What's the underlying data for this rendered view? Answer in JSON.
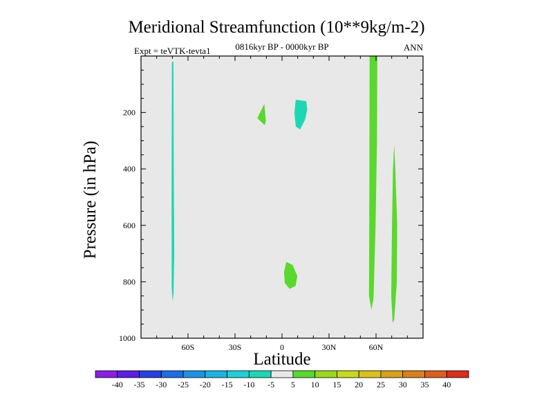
{
  "chart_data": {
    "type": "filled_contour",
    "title": "Meridional Streamfunction (10**9kg/m-2)",
    "subtitle_left": "Expt = teVTK-tevta1",
    "subtitle_center": "0816kyr BP - 0000kyr BP",
    "subtitle_right": "ANN",
    "xlabel": "Latitude",
    "ylabel": "Pressure (in hPa)",
    "xlim": [
      -90,
      90
    ],
    "ylim": [
      1000,
      0
    ],
    "x_ticks": [
      {
        "value": -60,
        "label": "60S"
      },
      {
        "value": -30,
        "label": "30S"
      },
      {
        "value": 0,
        "label": "0"
      },
      {
        "value": 30,
        "label": "30N"
      },
      {
        "value": 60,
        "label": "60N"
      }
    ],
    "y_ticks": [
      {
        "value": 200,
        "label": "200"
      },
      {
        "value": 400,
        "label": "400"
      },
      {
        "value": 600,
        "label": "600"
      },
      {
        "value": 800,
        "label": "800"
      },
      {
        "value": 1000,
        "label": "1000"
      }
    ],
    "background_color": "#e8e8e8",
    "contour_regions": [
      {
        "name": "neg-region-70s",
        "level": "-10 to -5",
        "color": "#1fd6b4",
        "points": [
          [
            -70.3,
            20
          ],
          [
            -69.3,
            20
          ],
          [
            -69.1,
            400
          ],
          [
            -68.8,
            700
          ],
          [
            -69.2,
            840
          ],
          [
            -69.8,
            870
          ],
          [
            -70.4,
            820
          ],
          [
            -70.5,
            500
          ]
        ]
      },
      {
        "name": "pos-region-12s",
        "level": "5 to 10",
        "color": "#5ad82e",
        "points": [
          [
            -11.3,
            170
          ],
          [
            -10.3,
            230
          ],
          [
            -11.1,
            245
          ],
          [
            -15.8,
            220
          ],
          [
            -13.6,
            195
          ]
        ]
      },
      {
        "name": "neg-region-10n",
        "level": "-10 to -5",
        "color": "#1fd6b4",
        "points": [
          [
            8.8,
            155
          ],
          [
            15.5,
            160
          ],
          [
            16.1,
            190
          ],
          [
            14.8,
            225
          ],
          [
            11.5,
            260
          ],
          [
            8.8,
            250
          ],
          [
            7.9,
            200
          ]
        ]
      },
      {
        "name": "pos-region-5n-lower",
        "level": "5 to 10",
        "color": "#5ad82e",
        "points": [
          [
            2.7,
            730
          ],
          [
            6.7,
            740
          ],
          [
            9.8,
            780
          ],
          [
            8.6,
            815
          ],
          [
            4.9,
            825
          ],
          [
            1.8,
            805
          ],
          [
            1.3,
            765
          ]
        ]
      },
      {
        "name": "pos-region-58n",
        "level": "5 to 10",
        "color": "#5ad82e",
        "points": [
          [
            55.9,
            0
          ],
          [
            60.8,
            0
          ],
          [
            60.6,
            300
          ],
          [
            59.7,
            600
          ],
          [
            58.4,
            860
          ],
          [
            57.5,
            885
          ],
          [
            57.1,
            900
          ],
          [
            55.5,
            850
          ],
          [
            55.7,
            500
          ]
        ]
      },
      {
        "name": "pos-region-72n",
        "level": "5 to 10",
        "color": "#5ad82e",
        "points": [
          [
            71.6,
            315
          ],
          [
            72.3,
            400
          ],
          [
            73.5,
            600
          ],
          [
            73.3,
            800
          ],
          [
            71.6,
            935
          ],
          [
            70.6,
            945
          ],
          [
            69.7,
            850
          ],
          [
            70.2,
            600
          ],
          [
            70.8,
            400
          ]
        ]
      }
    ],
    "colorbar": {
      "levels": [
        "-40",
        "-35",
        "-30",
        "-25",
        "-20",
        "-15",
        "-10",
        "-5",
        "5",
        "10",
        "15",
        "20",
        "25",
        "30",
        "35",
        "40"
      ],
      "colors": [
        "#8a1fe0",
        "#5a1fe0",
        "#2a3fe0",
        "#1f6ee0",
        "#1f93e0",
        "#1fb2e0",
        "#1fcfd6",
        "#1fd6b4",
        "#e8e8e8",
        "#5ad82e",
        "#9ad81f",
        "#c8d81f",
        "#d8c01f",
        "#d8a01f",
        "#d8801f",
        "#d8601f",
        "#d8301f"
      ]
    }
  }
}
